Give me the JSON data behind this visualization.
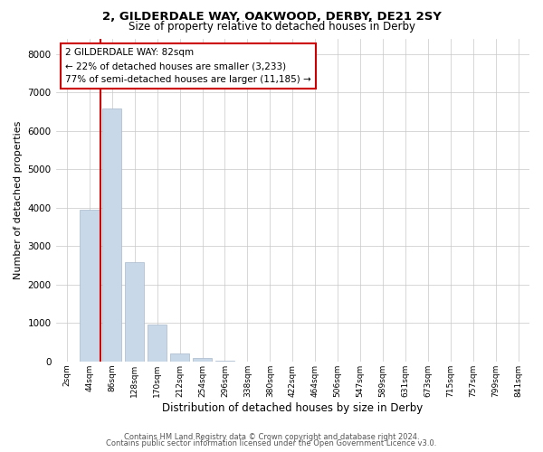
{
  "title1": "2, GILDERDALE WAY, OAKWOOD, DERBY, DE21 2SY",
  "title2": "Size of property relative to detached houses in Derby",
  "xlabel": "Distribution of detached houses by size in Derby",
  "ylabel": "Number of detached properties",
  "annotation_line1": "2 GILDERDALE WAY: 82sqm",
  "annotation_line2": "← 22% of detached houses are smaller (3,233)",
  "annotation_line3": "77% of semi-detached houses are larger (11,185) →",
  "bar_color": "#c8d8e8",
  "bar_edge_color": "#a8b8cc",
  "vline_color": "#cc0000",
  "annotation_box_color": "#cc0000",
  "background_color": "#ffffff",
  "grid_color": "#c8c8c8",
  "categories": [
    "2sqm",
    "44sqm",
    "86sqm",
    "128sqm",
    "170sqm",
    "212sqm",
    "254sqm",
    "296sqm",
    "338sqm",
    "380sqm",
    "422sqm",
    "464sqm",
    "506sqm",
    "547sqm",
    "589sqm",
    "631sqm",
    "673sqm",
    "715sqm",
    "757sqm",
    "799sqm",
    "841sqm"
  ],
  "values": [
    0,
    3950,
    6580,
    2580,
    950,
    200,
    80,
    30,
    0,
    0,
    0,
    0,
    0,
    0,
    0,
    0,
    0,
    0,
    0,
    0,
    0
  ],
  "ylim": [
    0,
    8400
  ],
  "yticks": [
    0,
    1000,
    2000,
    3000,
    4000,
    5000,
    6000,
    7000,
    8000
  ],
  "footer1": "Contains HM Land Registry data © Crown copyright and database right 2024.",
  "footer2": "Contains public sector information licensed under the Open Government Licence v3.0.",
  "vline_x": 1.5
}
